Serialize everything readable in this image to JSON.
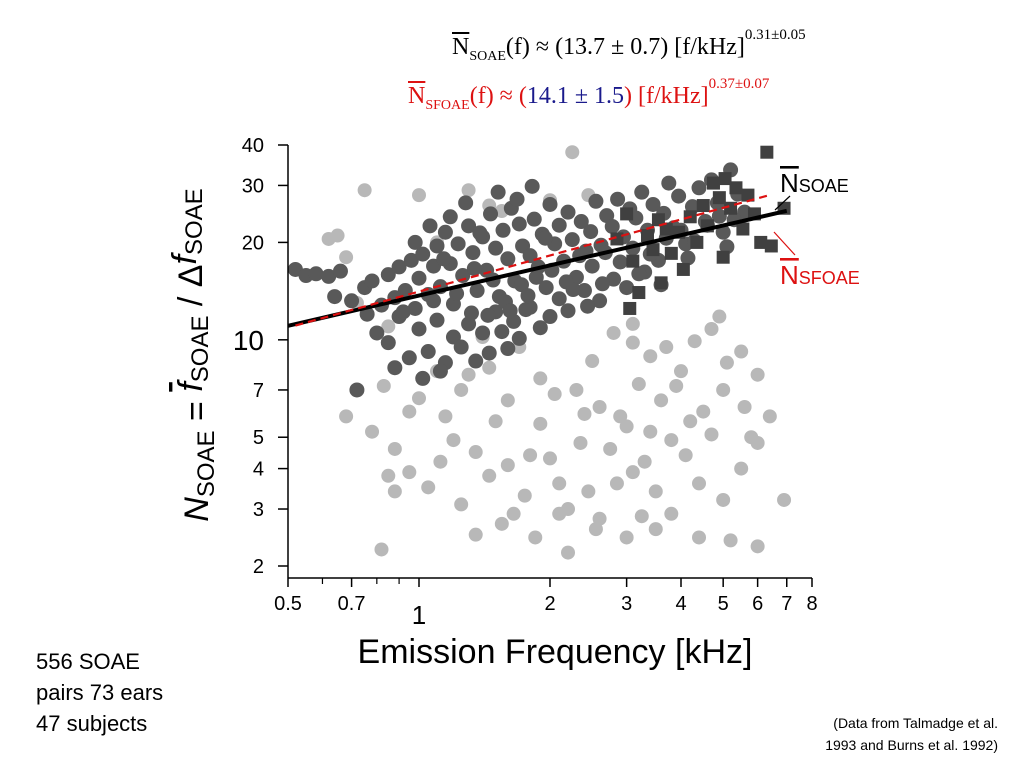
{
  "equations": {
    "soae": {
      "lhs_symbol": "N",
      "lhs_subscript": "SOAE",
      "lhs_arg": "(f) ≈ ",
      "coef": "(13.7 ± 0.7)",
      "unit": " [f/kHz]",
      "exponent": "0.31±0.05",
      "color": "#000000"
    },
    "sfoae": {
      "lhs_symbol": "N",
      "lhs_subscript": "SFOAE",
      "lhs_arg": "(f) ≈ (",
      "coef": "14.1 ± 1.5",
      "after_coef": ")",
      "unit": " [f/kHz]",
      "exponent": "0.37±0.07",
      "color": "#dd1111",
      "coef_color": "#1a1a8c"
    }
  },
  "bottom_note": [
    "556 SOAE",
    "pairs 73 ears",
    "47 subjects"
  ],
  "credit": [
    "(Data from Talmadge et al.",
    "1993 and Burns et al. 1992)"
  ],
  "chart_data": {
    "type": "scatter",
    "xlabel": "Emission Frequency [kHz]",
    "ylabel": "N_SOAE = f̄_SOAE / Δf_SOAE",
    "xscale": "log",
    "yscale": "log",
    "xlim": [
      0.5,
      8
    ],
    "ylim": [
      2,
      40
    ],
    "x_ticks": [
      0.5,
      0.7,
      1,
      2,
      3,
      4,
      5,
      6,
      7,
      8
    ],
    "x_tick_labels": [
      "0.5",
      "0.7",
      "1",
      "2",
      "3",
      "4",
      "5",
      "6",
      "7",
      "8"
    ],
    "y_ticks": [
      2,
      3,
      4,
      5,
      7,
      10,
      20,
      30,
      40
    ],
    "y_tick_labels": [
      "2",
      "3",
      "4",
      "5",
      "7",
      "10",
      "20",
      "30",
      "40"
    ],
    "colors": {
      "light_points": "#b8b8b8",
      "dark_points": "#595959",
      "squares": "#404040",
      "soae_line": "#000000",
      "sfoae_line": "#dd1111"
    },
    "fits": [
      {
        "name": "N_SOAE",
        "label_main": "N",
        "label_sub": "SOAE",
        "coefficient": 13.7,
        "exponent": 0.31,
        "x_range": [
          0.5,
          7
        ],
        "style": "solid",
        "color": "#000000"
      },
      {
        "name": "N_SFOAE",
        "label_main": "N",
        "label_sub": "SFOAE",
        "coefficient": 14.1,
        "exponent": 0.37,
        "x_range": [
          0.52,
          6.4
        ],
        "style": "dashed",
        "color": "#dd1111"
      }
    ],
    "series_light": [
      [
        0.62,
        20.5
      ],
      [
        0.65,
        21
      ],
      [
        0.68,
        18
      ],
      [
        0.75,
        29
      ],
      [
        0.72,
        13
      ],
      [
        0.85,
        11
      ],
      [
        1.0,
        28
      ],
      [
        1.1,
        20
      ],
      [
        1.3,
        29
      ],
      [
        1.45,
        26
      ],
      [
        1.55,
        25
      ],
      [
        2.0,
        27
      ],
      [
        2.25,
        38
      ],
      [
        2.45,
        28
      ],
      [
        0.83,
        7.2
      ],
      [
        0.95,
        6
      ],
      [
        1.1,
        8
      ],
      [
        1.25,
        7
      ],
      [
        1.3,
        7.8
      ],
      [
        1.45,
        8.2
      ],
      [
        1.6,
        6.5
      ],
      [
        1.9,
        7.6
      ],
      [
        2.05,
        6.8
      ],
      [
        2.3,
        7
      ],
      [
        0.78,
        5.2
      ],
      [
        0.85,
        3.8
      ],
      [
        0.88,
        4.6
      ],
      [
        0.95,
        3.9
      ],
      [
        1.05,
        3.5
      ],
      [
        1.15,
        5.8
      ],
      [
        1.2,
        4.9
      ],
      [
        1.35,
        4.5
      ],
      [
        1.45,
        3.8
      ],
      [
        1.5,
        5.6
      ],
      [
        1.6,
        4.1
      ],
      [
        1.75,
        3.3
      ],
      [
        1.8,
        4.4
      ],
      [
        1.9,
        5.5
      ],
      [
        2.0,
        4.3
      ],
      [
        2.1,
        3.6
      ],
      [
        2.2,
        3.0
      ],
      [
        2.35,
        4.8
      ],
      [
        2.45,
        3.4
      ],
      [
        2.6,
        2.8
      ],
      [
        2.75,
        4.6
      ],
      [
        3.0,
        5.4
      ],
      [
        3.1,
        3.9
      ],
      [
        3.3,
        4.2
      ],
      [
        3.5,
        3.4
      ],
      [
        3.8,
        2.9
      ],
      [
        4.1,
        4.4
      ],
      [
        4.4,
        3.6
      ],
      [
        4.7,
        5.1
      ],
      [
        5.0,
        3.2
      ],
      [
        5.5,
        4.0
      ],
      [
        6.0,
        4.8
      ],
      [
        6.4,
        5.8
      ],
      [
        6.9,
        3.2
      ],
      [
        0.82,
        2.25
      ],
      [
        1.35,
        2.5
      ],
      [
        1.55,
        2.7
      ],
      [
        1.85,
        2.45
      ],
      [
        2.2,
        2.2
      ],
      [
        2.55,
        2.6
      ],
      [
        3.0,
        2.45
      ],
      [
        3.5,
        2.6
      ],
      [
        4.4,
        2.45
      ],
      [
        5.2,
        2.4
      ],
      [
        6.0,
        2.3
      ],
      [
        2.8,
        10.5
      ],
      [
        3.1,
        9.8
      ],
      [
        3.4,
        8.9
      ],
      [
        3.7,
        9.5
      ],
      [
        4.0,
        8.0
      ],
      [
        4.3,
        9.9
      ],
      [
        4.7,
        10.8
      ],
      [
        5.1,
        8.5
      ],
      [
        5.5,
        9.2
      ],
      [
        6.0,
        7.8
      ],
      [
        3.2,
        7.3
      ],
      [
        3.6,
        6.5
      ],
      [
        3.9,
        7.2
      ],
      [
        4.5,
        6.0
      ],
      [
        5.0,
        7.0
      ],
      [
        5.6,
        6.2
      ],
      [
        2.6,
        6.2
      ],
      [
        2.9,
        5.8
      ],
      [
        3.4,
        5.2
      ],
      [
        3.8,
        4.9
      ],
      [
        2.5,
        8.6
      ],
      [
        1.7,
        9.5
      ],
      [
        1.4,
        10.2
      ],
      [
        3.1,
        11.2
      ],
      [
        4.9,
        11.8
      ],
      [
        0.68,
        5.8
      ],
      [
        1.0,
        6.6
      ],
      [
        1.25,
        3.1
      ],
      [
        1.65,
        2.9
      ],
      [
        2.85,
        3.6
      ],
      [
        4.2,
        5.6
      ],
      [
        5.8,
        5.0
      ],
      [
        0.88,
        3.4
      ],
      [
        1.12,
        4.2
      ],
      [
        2.4,
        5.9
      ],
      [
        2.1,
        2.9
      ],
      [
        3.25,
        2.85
      ]
    ],
    "series_dark": [
      [
        0.52,
        16.5
      ],
      [
        0.55,
        15.8
      ],
      [
        0.58,
        16
      ],
      [
        0.62,
        15.7
      ],
      [
        0.66,
        16.3
      ],
      [
        0.7,
        13.2
      ],
      [
        0.75,
        14.5
      ],
      [
        0.78,
        15.2
      ],
      [
        0.82,
        12.8
      ],
      [
        0.85,
        15.9
      ],
      [
        0.88,
        13.5
      ],
      [
        0.9,
        16.8
      ],
      [
        0.93,
        14.2
      ],
      [
        0.96,
        17.6
      ],
      [
        0.98,
        12.5
      ],
      [
        1.0,
        15.5
      ],
      [
        1.02,
        18.4
      ],
      [
        1.05,
        13.8
      ],
      [
        1.08,
        16.9
      ],
      [
        1.1,
        19.5
      ],
      [
        1.12,
        14.6
      ],
      [
        1.15,
        21.5
      ],
      [
        1.18,
        17.2
      ],
      [
        1.2,
        12.9
      ],
      [
        1.23,
        19.8
      ],
      [
        1.26,
        15.8
      ],
      [
        1.3,
        22.5
      ],
      [
        1.33,
        18.6
      ],
      [
        1.36,
        14.2
      ],
      [
        1.4,
        20.8
      ],
      [
        1.43,
        16.4
      ],
      [
        1.46,
        24.5
      ],
      [
        1.5,
        19.2
      ],
      [
        1.53,
        13.6
      ],
      [
        1.56,
        21.8
      ],
      [
        1.6,
        17.8
      ],
      [
        1.63,
        25.5
      ],
      [
        1.66,
        15.2
      ],
      [
        1.7,
        22.8
      ],
      [
        1.73,
        19.5
      ],
      [
        1.76,
        12.4
      ],
      [
        1.8,
        18.2
      ],
      [
        1.84,
        23.6
      ],
      [
        1.88,
        16.8
      ],
      [
        1.92,
        21.2
      ],
      [
        1.96,
        14.5
      ],
      [
        2.0,
        26.2
      ],
      [
        2.05,
        19.8
      ],
      [
        2.1,
        22.6
      ],
      [
        2.15,
        17.5
      ],
      [
        2.2,
        24.8
      ],
      [
        2.25,
        20.4
      ],
      [
        2.3,
        15.6
      ],
      [
        2.36,
        23.2
      ],
      [
        2.42,
        18.8
      ],
      [
        2.48,
        21.6
      ],
      [
        2.55,
        26.8
      ],
      [
        2.62,
        19.6
      ],
      [
        2.7,
        24.2
      ],
      [
        2.78,
        22.4
      ],
      [
        2.86,
        27.2
      ],
      [
        2.95,
        20.8
      ],
      [
        3.05,
        25.4
      ],
      [
        3.15,
        23.8
      ],
      [
        3.25,
        28.6
      ],
      [
        3.35,
        21.8
      ],
      [
        3.45,
        26.2
      ],
      [
        3.55,
        17.6
      ],
      [
        3.65,
        24.6
      ],
      [
        3.75,
        30.5
      ],
      [
        3.85,
        22.2
      ],
      [
        3.95,
        27.8
      ],
      [
        4.1,
        19.8
      ],
      [
        4.25,
        25.8
      ],
      [
        4.4,
        29.5
      ],
      [
        4.55,
        23.2
      ],
      [
        4.7,
        31.2
      ],
      [
        4.85,
        26.5
      ],
      [
        5.0,
        21.5
      ],
      [
        5.2,
        33.5
      ],
      [
        5.4,
        28.2
      ],
      [
        5.6,
        24.8
      ],
      [
        0.8,
        10.5
      ],
      [
        0.85,
        9.8
      ],
      [
        0.9,
        11.8
      ],
      [
        0.95,
        8.8
      ],
      [
        1.0,
        10.8
      ],
      [
        1.05,
        9.2
      ],
      [
        1.1,
        11.5
      ],
      [
        1.15,
        8.5
      ],
      [
        1.2,
        10.2
      ],
      [
        1.25,
        9.5
      ],
      [
        1.3,
        11.2
      ],
      [
        1.35,
        8.6
      ],
      [
        1.4,
        10.5
      ],
      [
        1.45,
        9.1
      ],
      [
        1.5,
        12.2
      ],
      [
        1.55,
        10.6
      ],
      [
        1.6,
        9.4
      ],
      [
        1.65,
        11.4
      ],
      [
        1.7,
        10.1
      ],
      [
        1.8,
        12.6
      ],
      [
        1.9,
        10.9
      ],
      [
        2.0,
        11.8
      ],
      [
        2.1,
        13.4
      ],
      [
        2.2,
        12.3
      ],
      [
        2.4,
        14.2
      ],
      [
        2.6,
        13.2
      ],
      [
        2.8,
        15.4
      ],
      [
        3.0,
        14.5
      ],
      [
        3.3,
        16.2
      ],
      [
        3.6,
        14.8
      ],
      [
        0.72,
        7.0
      ],
      [
        0.88,
        8.2
      ],
      [
        1.02,
        7.6
      ],
      [
        1.12,
        8.0
      ],
      [
        0.98,
        20.0
      ],
      [
        1.06,
        22.5
      ],
      [
        1.18,
        24.0
      ],
      [
        1.28,
        26.5
      ],
      [
        1.38,
        21.4
      ],
      [
        1.52,
        28.6
      ],
      [
        1.68,
        27.2
      ],
      [
        1.82,
        29.8
      ],
      [
        1.95,
        20.6
      ],
      [
        1.08,
        13.2
      ],
      [
        1.22,
        13.9
      ],
      [
        1.32,
        12.1
      ],
      [
        1.48,
        15.3
      ],
      [
        1.58,
        13.1
      ],
      [
        1.72,
        14.8
      ],
      [
        1.86,
        15.6
      ],
      [
        2.02,
        16.4
      ],
      [
        2.18,
        15.1
      ],
      [
        2.34,
        18.2
      ],
      [
        2.5,
        16.9
      ],
      [
        2.68,
        18.6
      ],
      [
        2.9,
        17.4
      ],
      [
        3.1,
        19.2
      ],
      [
        3.4,
        18.4
      ],
      [
        3.7,
        20.6
      ],
      [
        4.0,
        21.8
      ],
      [
        4.3,
        20.2
      ],
      [
        4.6,
        22.6
      ],
      [
        4.9,
        24.1
      ],
      [
        5.3,
        23.5
      ],
      [
        0.64,
        13.6
      ],
      [
        0.76,
        12.0
      ],
      [
        0.92,
        12.2
      ],
      [
        1.14,
        17.8
      ],
      [
        1.34,
        16.6
      ],
      [
        1.44,
        11.9
      ],
      [
        1.62,
        12.3
      ],
      [
        1.78,
        13.7
      ],
      [
        2.26,
        14.3
      ],
      [
        2.44,
        12.7
      ],
      [
        2.64,
        14.9
      ],
      [
        3.2,
        16.0
      ],
      [
        4.15,
        17.9
      ],
      [
        5.1,
        19.4
      ]
    ],
    "series_squares": [
      [
        2.85,
        20.5
      ],
      [
        3.0,
        24.5
      ],
      [
        3.1,
        17.5
      ],
      [
        3.2,
        14.0
      ],
      [
        3.35,
        21.0
      ],
      [
        3.45,
        19.0
      ],
      [
        3.55,
        23.5
      ],
      [
        3.6,
        15.0
      ],
      [
        3.7,
        22.0
      ],
      [
        3.8,
        18.5
      ],
      [
        3.95,
        21.5
      ],
      [
        4.05,
        16.5
      ],
      [
        4.2,
        24.0
      ],
      [
        4.35,
        20.0
      ],
      [
        4.5,
        26.0
      ],
      [
        4.6,
        22.5
      ],
      [
        4.75,
        30.5
      ],
      [
        4.9,
        27.5
      ],
      [
        5.05,
        31.5
      ],
      [
        5.2,
        25.5
      ],
      [
        5.35,
        29.5
      ],
      [
        5.55,
        22.0
      ],
      [
        5.7,
        28.0
      ],
      [
        5.9,
        24.5
      ],
      [
        6.1,
        20.0
      ],
      [
        6.3,
        38.0
      ],
      [
        6.45,
        19.5
      ],
      [
        6.9,
        25.5
      ],
      [
        3.05,
        12.5
      ],
      [
        5.0,
        18.0
      ]
    ]
  }
}
